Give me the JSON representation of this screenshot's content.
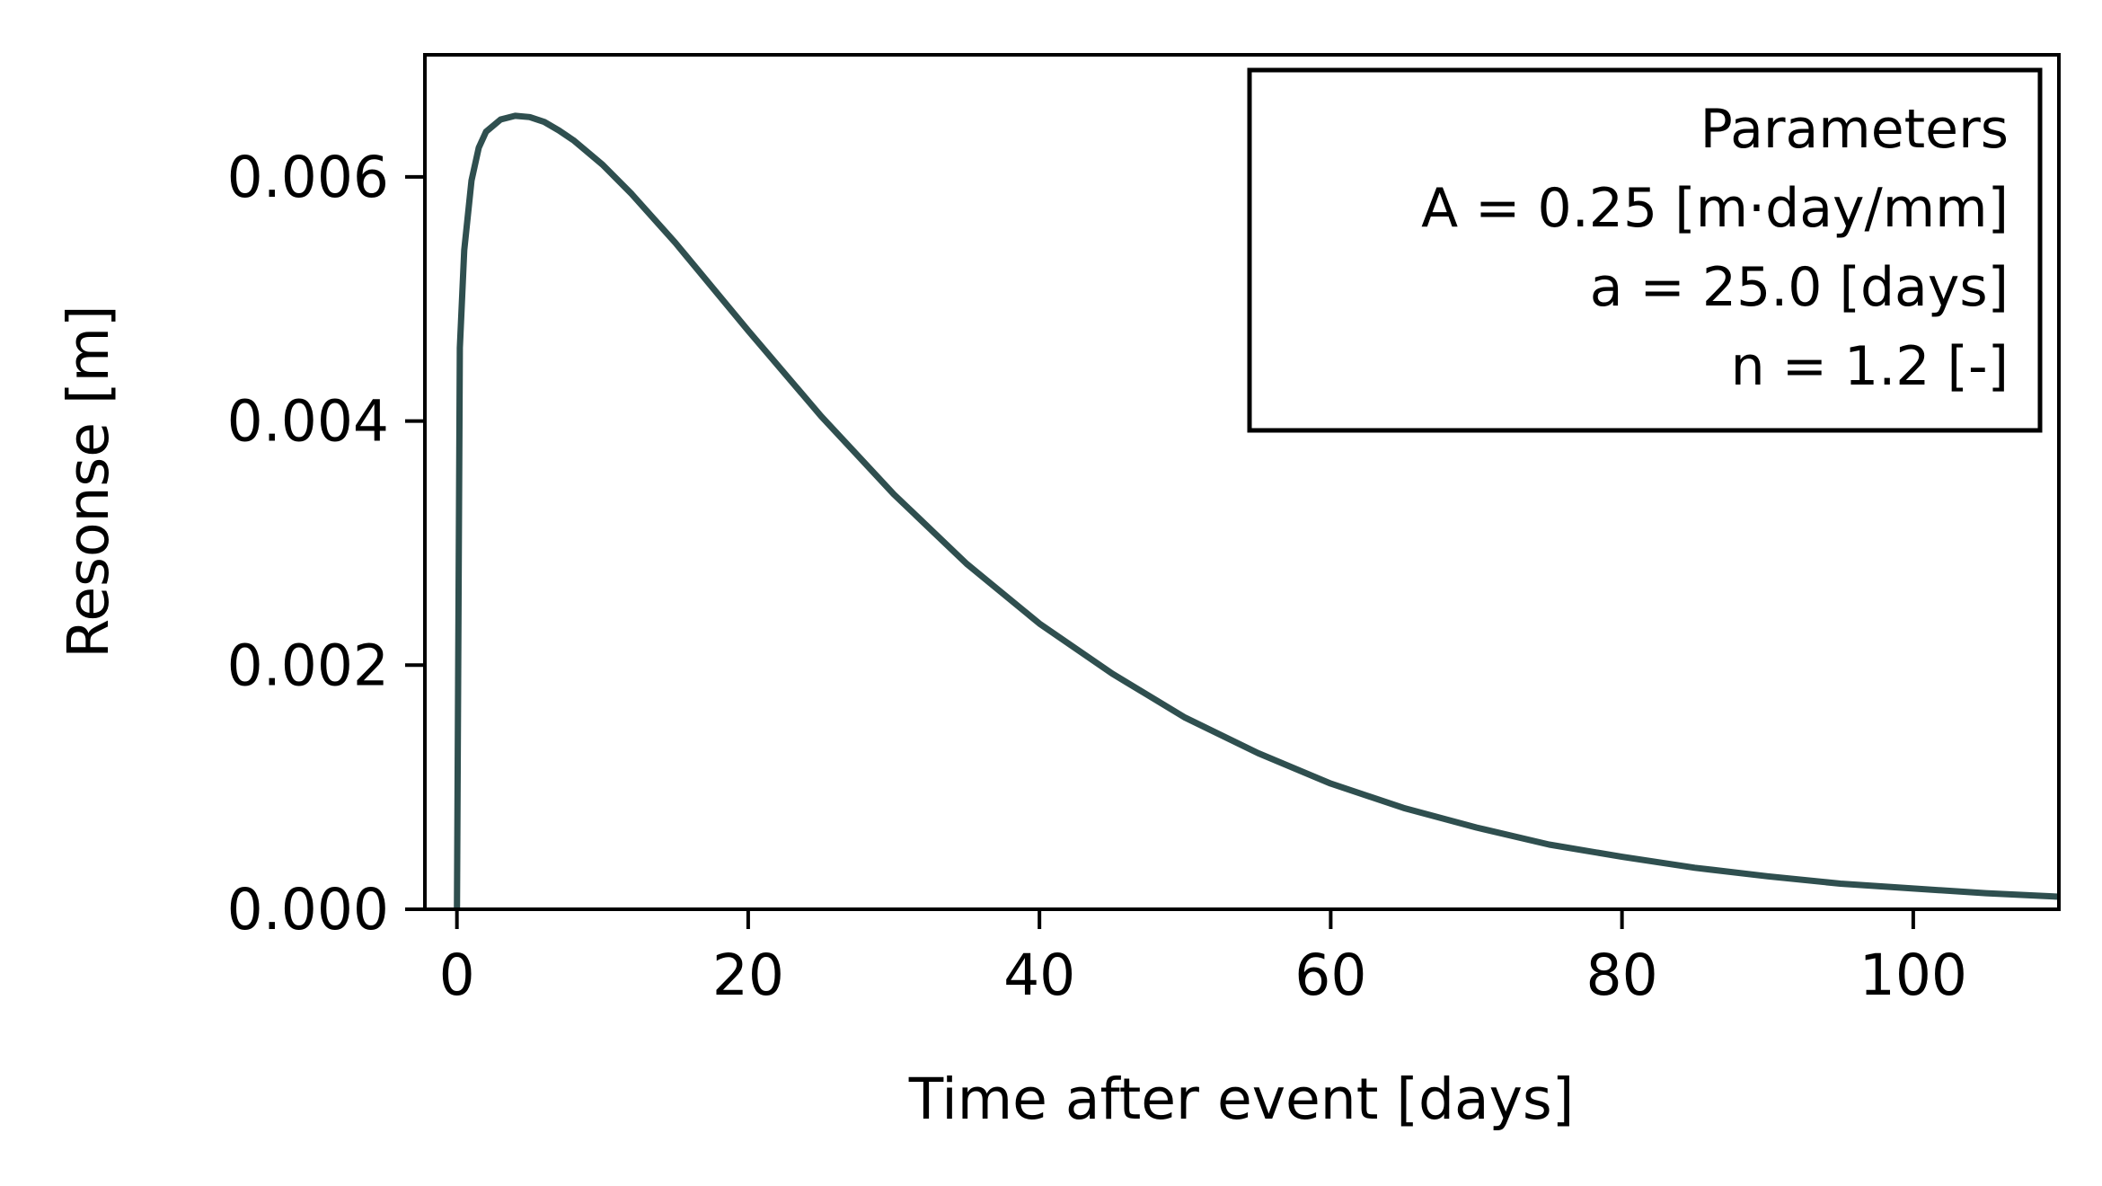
{
  "chart_data": {
    "type": "line",
    "title": "",
    "xlabel": "Time after event [days]",
    "ylabel": "Resonse [m]",
    "xlim": [
      -2.2,
      110
    ],
    "ylim": [
      0,
      0.007
    ],
    "xticks": [
      0,
      20,
      40,
      60,
      80,
      100
    ],
    "xtick_labels": [
      "0",
      "20",
      "40",
      "60",
      "80",
      "100"
    ],
    "yticks": [
      0,
      0.002,
      0.004,
      0.006
    ],
    "ytick_labels": [
      "0.000",
      "0.002",
      "0.004",
      "0.006"
    ],
    "grid": false,
    "series": [
      {
        "color": "#2f4f4f",
        "x": [
          0,
          0.2,
          0.5,
          1,
          1.5,
          2,
          3,
          4,
          5,
          6,
          7,
          8,
          10,
          12,
          15,
          20,
          25,
          30,
          35,
          40,
          45,
          50,
          55,
          60,
          65,
          70,
          75,
          80,
          85,
          90,
          95,
          100,
          105,
          110
        ],
        "y": [
          0,
          0.0046,
          0.0054,
          0.00597,
          0.00624,
          0.00637,
          0.00647,
          0.0065,
          0.00649,
          0.00645,
          0.00638,
          0.0063,
          0.0061,
          0.00586,
          0.00546,
          0.00474,
          0.00404,
          0.0034,
          0.00283,
          0.00234,
          0.00193,
          0.00157,
          0.00128,
          0.00103,
          0.00083,
          0.00067,
          0.00053,
          0.00043,
          0.00034,
          0.00027,
          0.00021,
          0.00017,
          0.000132,
          0.000103
        ]
      }
    ],
    "legend": {
      "placement": "top-right",
      "lines": [
        "Parameters",
        "A = 0.25 [m·day/mm]",
        "a = 25.0 [days]",
        "n = 1.2 [-]"
      ]
    }
  }
}
